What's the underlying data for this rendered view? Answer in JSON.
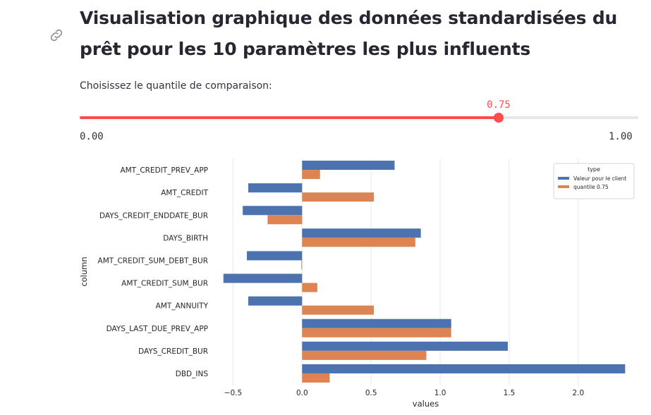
{
  "header": {
    "title": "Visualisation graphique des données standardisées du prêt pour les 10 paramètres les plus influents",
    "link_icon": "link-icon"
  },
  "slider": {
    "label": "Choisissez le quantile de comparaison:",
    "value": 0.75,
    "value_text": "0.75",
    "min": 0,
    "max": 1,
    "min_text": "0.00",
    "max_text": "1.00",
    "accent_color": "#ff4b4b"
  },
  "chart_data": {
    "type": "bar",
    "orientation": "horizontal",
    "categories": [
      "AMT_CREDIT_PREV_APP",
      "AMT_CREDIT",
      "DAYS_CREDIT_ENDDATE_BUR",
      "DAYS_BIRTH",
      "AMT_CREDIT_SUM_DEBT_BUR",
      "AMT_CREDIT_SUM_BUR",
      "AMT_ANNUITY",
      "DAYS_LAST_DUE_PREV_APP",
      "DAYS_CREDIT_BUR",
      "DBD_INS"
    ],
    "series": [
      {
        "name": "Valeur pour le client",
        "color": "#4c72b0",
        "values": [
          0.67,
          -0.39,
          -0.43,
          0.86,
          -0.4,
          -0.57,
          -0.39,
          1.08,
          1.49,
          2.34
        ]
      },
      {
        "name": "quantile 0.75",
        "color": "#dd8452",
        "values": [
          0.13,
          0.52,
          -0.25,
          0.82,
          -0.005,
          0.11,
          0.52,
          1.08,
          0.9,
          0.2
        ]
      }
    ],
    "xlabel": "values",
    "ylabel": "column",
    "xticks": [
      -0.5,
      0.0,
      0.5,
      1.0,
      1.5,
      2.0
    ],
    "xtick_labels": [
      "−0.5",
      "0.0",
      "0.5",
      "1.0",
      "1.5",
      "2.0"
    ],
    "xlim": [
      -0.63,
      2.42
    ],
    "grid": true,
    "legend_title": "type",
    "legend_position": "top-right"
  }
}
